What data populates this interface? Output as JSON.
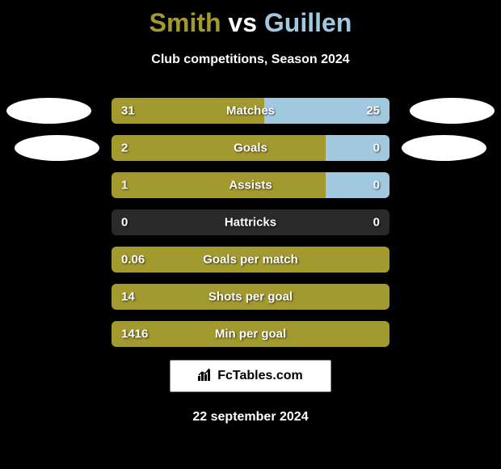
{
  "title": {
    "player1": "Smith",
    "vs": "vs",
    "player2": "Guillen",
    "player1_color": "#a39a2f",
    "player2_color": "#a2c8e0"
  },
  "subtitle": "Club competitions, Season 2024",
  "colors": {
    "left_fill": "#a39a2f",
    "right_fill": "#a2c8e0",
    "bar_bg": "#2a2a2a",
    "text": "#ffffff",
    "background": "#000000"
  },
  "stats": [
    {
      "label": "Matches",
      "left_value": "31",
      "right_value": "25",
      "left_pct": 55,
      "right_pct": 45
    },
    {
      "label": "Goals",
      "left_value": "2",
      "right_value": "0",
      "left_pct": 77,
      "right_pct": 23
    },
    {
      "label": "Assists",
      "left_value": "1",
      "right_value": "0",
      "left_pct": 77,
      "right_pct": 23
    },
    {
      "label": "Hattricks",
      "left_value": "0",
      "right_value": "0",
      "left_pct": 0,
      "right_pct": 0
    },
    {
      "label": "Goals per match",
      "left_value": "0.06",
      "right_value": "",
      "left_pct": 100,
      "right_pct": 0
    },
    {
      "label": "Shots per goal",
      "left_value": "14",
      "right_value": "",
      "left_pct": 100,
      "right_pct": 0
    },
    {
      "label": "Min per goal",
      "left_value": "1416",
      "right_value": "",
      "left_pct": 100,
      "right_pct": 0
    }
  ],
  "footer": {
    "logo_text": "FcTables.com",
    "date": "22 september 2024"
  }
}
